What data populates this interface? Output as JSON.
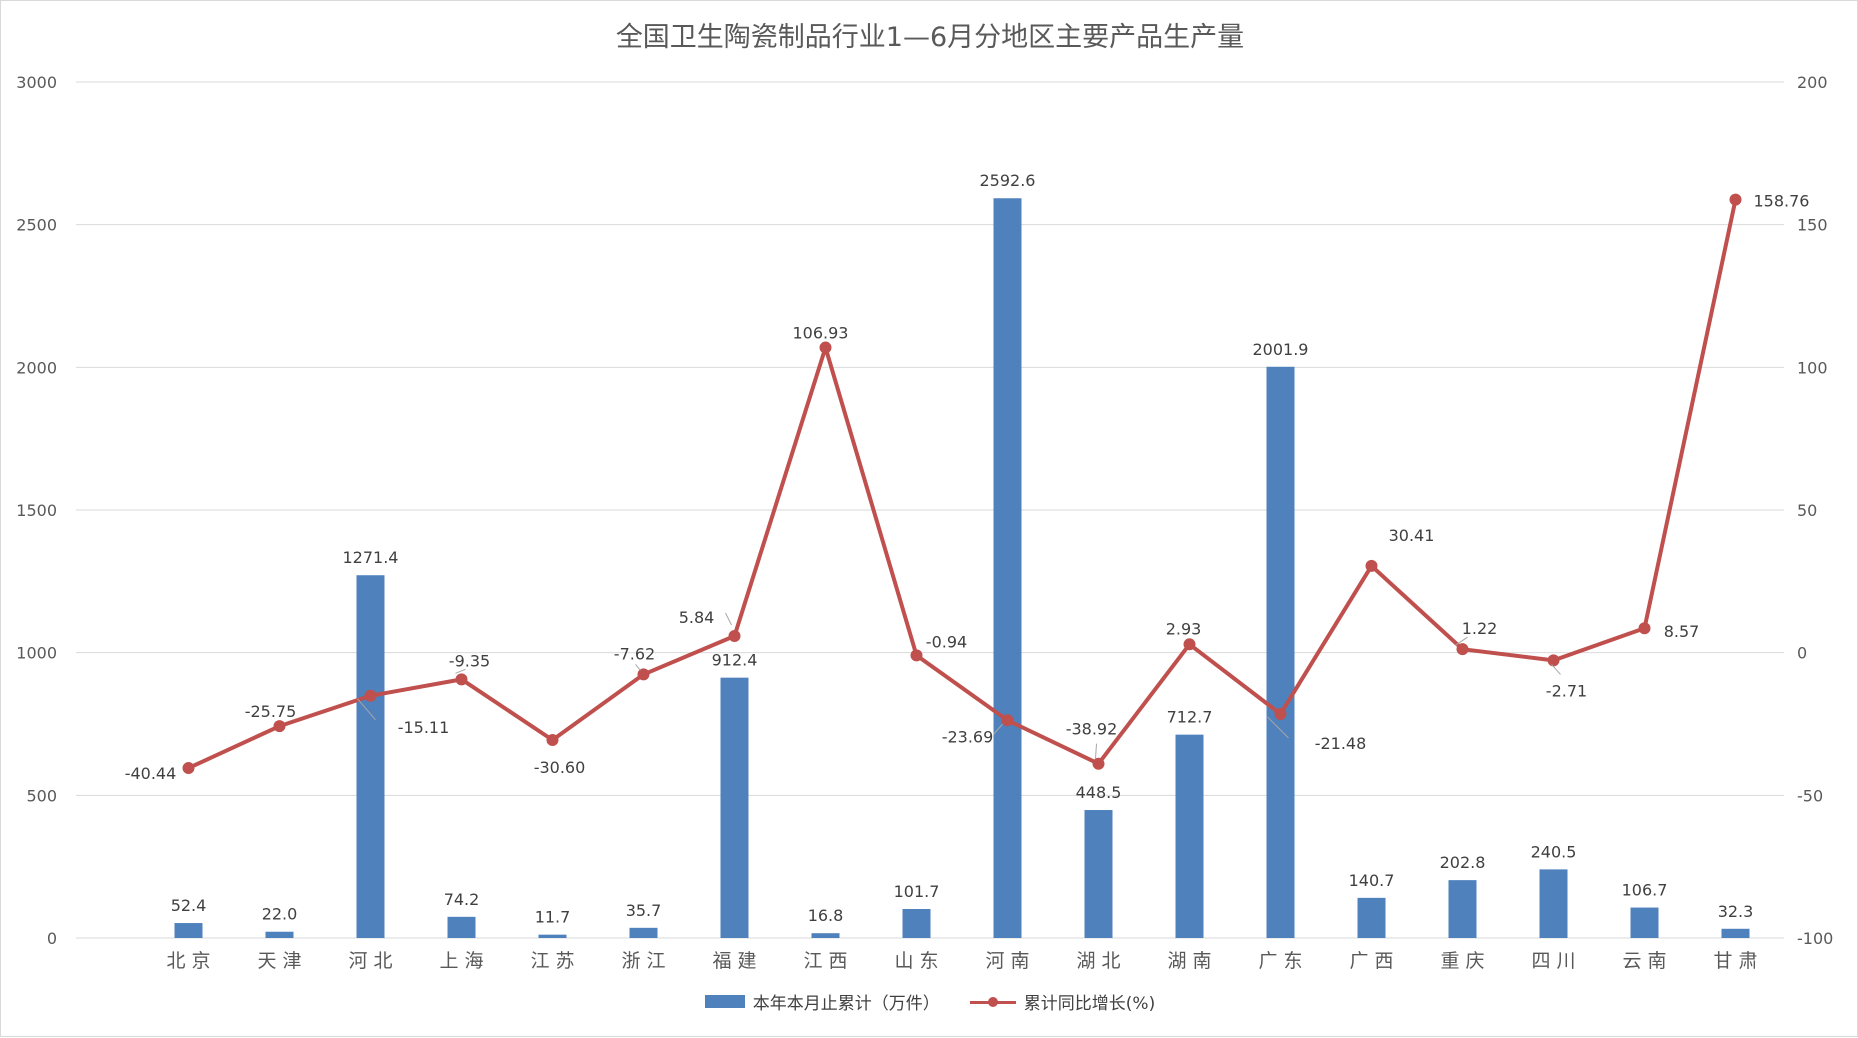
{
  "colors": {
    "bar": "#4f81bd",
    "line": "#c0504d",
    "grid": "#d9d9d9",
    "axis_text": "#595959",
    "label_text": "#404040"
  },
  "chart_data": {
    "type": "bar+line",
    "title": "全国卫生陶瓷制品行业1—6月分地区主要产品生产量",
    "categories": [
      "北 京",
      "天 津",
      "河 北",
      "上 海",
      "江 苏",
      "浙 江",
      "福 建",
      "江 西",
      "山 东",
      "河 南",
      "湖 北",
      "湖 南",
      "广 东",
      "广 西",
      "重 庆",
      "四 川",
      "云 南",
      "甘 肃"
    ],
    "series": [
      {
        "name": "本年本月止累计（万件）",
        "type": "bar",
        "axis": "left",
        "values": [
          52.4,
          22.0,
          1271.4,
          74.2,
          11.7,
          35.7,
          912.4,
          16.8,
          101.7,
          2592.6,
          448.5,
          712.7,
          2001.9,
          140.7,
          202.8,
          240.5,
          106.7,
          32.3
        ],
        "labels": [
          "52.4",
          "22.0",
          "1271.4",
          "74.2",
          "11.7",
          "35.7",
          "912.4",
          "16.8",
          "101.7",
          "2592.6",
          "448.5",
          "712.7",
          "2001.9",
          "140.7",
          "202.8",
          "240.5",
          "106.7",
          "32.3"
        ]
      },
      {
        "name": "累计同比增长(%)",
        "type": "line",
        "axis": "right",
        "values": [
          -40.44,
          -25.75,
          -15.11,
          -9.35,
          -30.6,
          -7.62,
          5.84,
          106.93,
          -0.94,
          -23.69,
          -38.92,
          2.93,
          -21.48,
          30.41,
          1.22,
          -2.71,
          8.57,
          158.76
        ],
        "labels": [
          "-40.44",
          "-25.75",
          "-15.11",
          "-9.35",
          "-30.60",
          "-7.62",
          "5.84",
          "106.93",
          "-0.94",
          "-23.69",
          "-38.92",
          "2.93",
          "-21.48",
          "30.41",
          "1.22",
          "-2.71",
          "8.57",
          "158.76"
        ]
      }
    ],
    "y_left": {
      "min": 0,
      "max": 3000,
      "ticks": [
        "0",
        "500",
        "1000",
        "1500",
        "2000",
        "2500",
        "3000"
      ]
    },
    "y_right": {
      "min": -100,
      "max": 200,
      "ticks": [
        "-100",
        "-50",
        "0",
        "50",
        "100",
        "150",
        "200"
      ]
    },
    "grid": true,
    "legend_position": "bottom"
  }
}
